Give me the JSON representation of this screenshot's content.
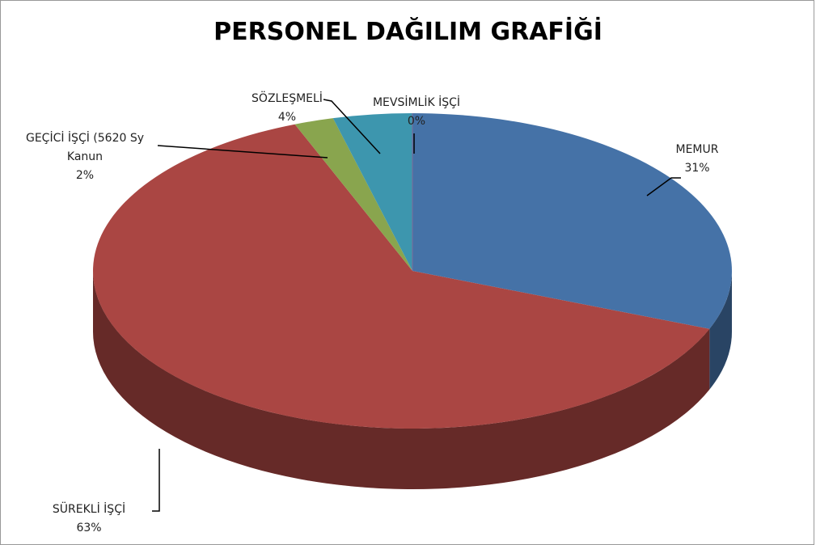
{
  "chart_data": {
    "type": "pie3d",
    "title": "PERSONEL DAĞILIM GRAFİĞİ",
    "categories": [
      "MEMUR",
      "SÜREKLİ İŞÇİ",
      "GEÇİCİ İŞÇİ (5620 Sy Kanun",
      "SÖZLEŞMELİ",
      "MEVSİMLİK İŞÇİ"
    ],
    "values": [
      31,
      63,
      2,
      4,
      0
    ],
    "value_labels": [
      "31%",
      "63%",
      "2%",
      "4%",
      "0%"
    ],
    "colors": [
      "#4572a7",
      "#aa4643",
      "#89a54e",
      "#3d96ae",
      "#80699b"
    ]
  }
}
